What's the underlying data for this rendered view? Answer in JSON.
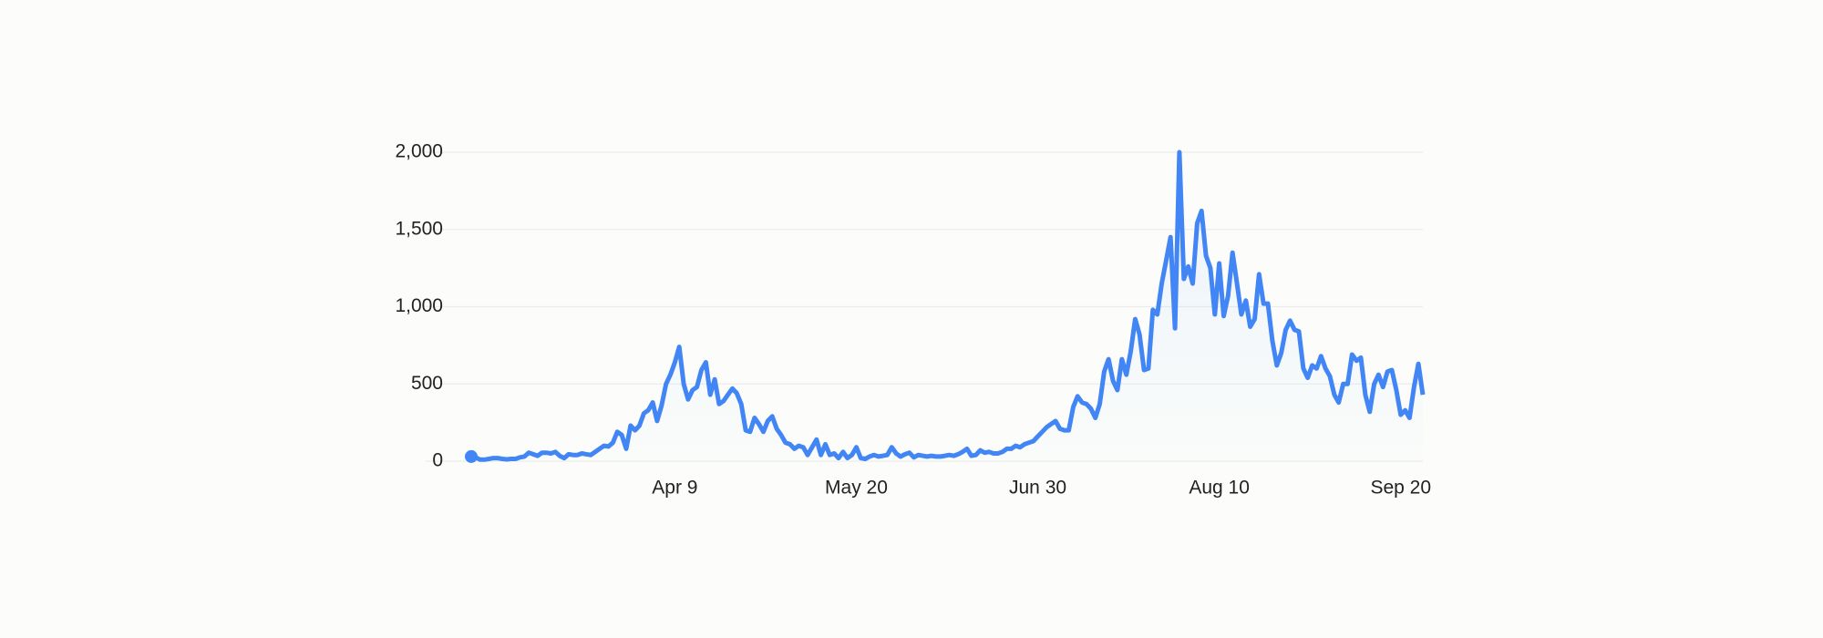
{
  "chart_data": {
    "type": "line",
    "categories": [
      null,
      null,
      null,
      null,
      null,
      null,
      null,
      null,
      null,
      null,
      null,
      null,
      null,
      null,
      null,
      null,
      null,
      null,
      null,
      null,
      null,
      null,
      null,
      null,
      null,
      null,
      null,
      null,
      null,
      null,
      null,
      null,
      null,
      null,
      null,
      null,
      null,
      null,
      null,
      null,
      null,
      null,
      null,
      null,
      null,
      null,
      "Apr 9",
      null,
      null,
      null,
      null,
      null,
      null,
      null,
      null,
      null,
      null,
      null,
      null,
      null,
      null,
      null,
      null,
      null,
      null,
      null,
      null,
      null,
      null,
      null,
      null,
      null,
      null,
      null,
      null,
      null,
      null,
      null,
      null,
      null,
      null,
      null,
      null,
      null,
      null,
      null,
      null,
      "May 20",
      null,
      null,
      null,
      null,
      null,
      null,
      null,
      null,
      null,
      null,
      null,
      null,
      null,
      null,
      null,
      null,
      null,
      null,
      null,
      null,
      null,
      null,
      null,
      null,
      null,
      null,
      null,
      null,
      null,
      null,
      null,
      null,
      null,
      null,
      null,
      null,
      null,
      null,
      null,
      null,
      "Jun 30",
      null,
      null,
      null,
      null,
      null,
      null,
      null,
      null,
      null,
      null,
      null,
      null,
      null,
      null,
      null,
      null,
      null,
      null,
      null,
      null,
      null,
      null,
      null,
      null,
      null,
      null,
      null,
      null,
      null,
      null,
      null,
      null,
      null,
      null,
      null,
      null,
      null,
      null,
      null,
      null,
      "Aug 10",
      null,
      null,
      null,
      null,
      null,
      null,
      null,
      null,
      null,
      null,
      null,
      null,
      null,
      null,
      null,
      null,
      null,
      null,
      null,
      null,
      null,
      null,
      null,
      null,
      null,
      null,
      null,
      null,
      null,
      null,
      null,
      null,
      null,
      null,
      null,
      null,
      null,
      null,
      null,
      null,
      "Sep 20",
      null,
      null,
      null,
      null,
      null
    ],
    "values": [
      30,
      25,
      10,
      10,
      15,
      20,
      20,
      15,
      12,
      15,
      15,
      25,
      30,
      55,
      45,
      35,
      55,
      55,
      50,
      60,
      35,
      20,
      45,
      40,
      40,
      50,
      45,
      40,
      60,
      80,
      100,
      95,
      120,
      190,
      170,
      80,
      230,
      200,
      230,
      310,
      330,
      380,
      260,
      360,
      500,
      560,
      640,
      740,
      500,
      400,
      460,
      480,
      590,
      640,
      430,
      530,
      370,
      390,
      430,
      470,
      440,
      370,
      200,
      190,
      280,
      240,
      190,
      260,
      290,
      210,
      170,
      120,
      110,
      80,
      100,
      90,
      40,
      90,
      140,
      40,
      110,
      40,
      50,
      20,
      60,
      20,
      40,
      90,
      20,
      15,
      30,
      40,
      30,
      35,
      40,
      90,
      50,
      30,
      45,
      55,
      25,
      40,
      35,
      30,
      35,
      30,
      30,
      35,
      40,
      35,
      45,
      60,
      80,
      35,
      40,
      70,
      55,
      60,
      50,
      50,
      60,
      80,
      80,
      100,
      90,
      110,
      120,
      130,
      160,
      190,
      220,
      240,
      260,
      210,
      200,
      200,
      350,
      420,
      380,
      370,
      340,
      280,
      370,
      580,
      660,
      520,
      460,
      660,
      560,
      710,
      920,
      820,
      590,
      600,
      980,
      950,
      1150,
      1300,
      1450,
      860,
      2000,
      1180,
      1260,
      1150,
      1540,
      1620,
      1330,
      1250,
      950,
      1280,
      940,
      1070,
      1350,
      1150,
      950,
      1040,
      870,
      920,
      1210,
      1020,
      1020,
      780,
      620,
      700,
      850,
      910,
      850,
      840,
      600,
      540,
      620,
      600,
      680,
      600,
      550,
      430,
      380,
      500,
      500,
      690,
      650,
      670,
      430,
      320,
      500,
      560,
      480,
      580,
      590,
      460,
      300,
      330,
      280,
      480,
      630,
      430
    ],
    "color": "#4285f4",
    "ylim": [
      0,
      2000
    ],
    "yticks": [
      0,
      500,
      {
        "value": 1000,
        "label": "1,000"
      },
      {
        "value": 1500,
        "label": "1,500"
      },
      {
        "value": 2000,
        "label": "2,000"
      }
    ],
    "grid": true
  }
}
